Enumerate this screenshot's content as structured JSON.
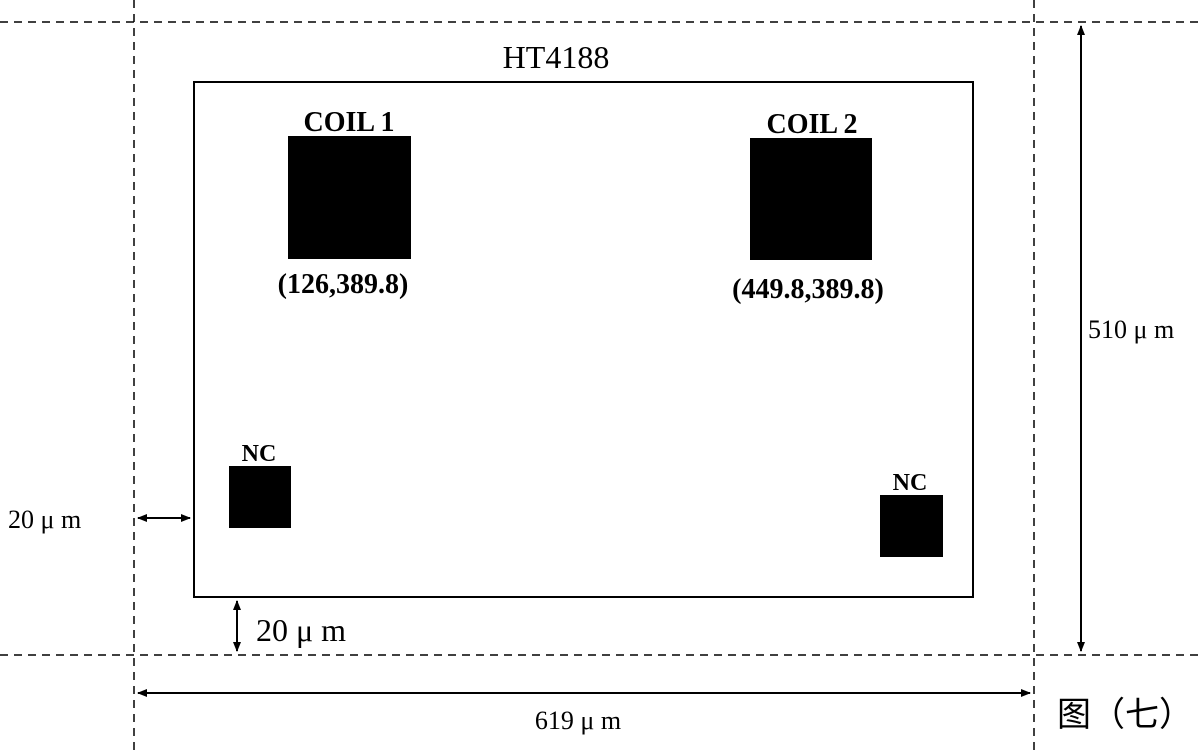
{
  "diagram": {
    "chip_name": "HT4188",
    "pads": [
      {
        "label": "COIL 1",
        "coord": "(126,389.8)"
      },
      {
        "label": "COIL 2",
        "coord": "(449.8,389.8)"
      }
    ],
    "nc_pads": [
      {
        "label": "NC"
      },
      {
        "label": "NC"
      }
    ],
    "dimensions": {
      "height": "510 μ m",
      "width": "619 μ m",
      "left_gap": "20 μ m",
      "bottom_gap": "20 μ m"
    },
    "figure_caption": "图（七）"
  }
}
